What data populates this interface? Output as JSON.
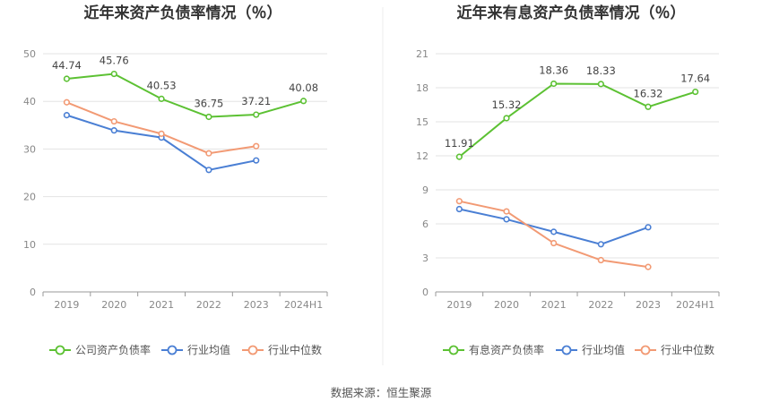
{
  "colors": {
    "green": "#5cc133",
    "blue": "#4a7fd4",
    "orange": "#f29a74",
    "grid": "#e3e3e3",
    "axis": "#999999"
  },
  "source_text": "数据来源：恒生聚源",
  "chart_data": [
    {
      "type": "line",
      "title": "近年来资产负债率情况（％）",
      "categories": [
        "2019",
        "2020",
        "2021",
        "2022",
        "2023",
        "2024H1"
      ],
      "ylim": [
        0,
        50
      ],
      "yticks": [
        0,
        10,
        20,
        30,
        40,
        50
      ],
      "grid": true,
      "legend_position": "bottom",
      "series": [
        {
          "name": "公司资产负债率",
          "color": "green",
          "values": [
            44.74,
            45.76,
            40.53,
            36.75,
            37.21,
            40.08
          ],
          "labels": [
            "44.74",
            "45.76",
            "40.53",
            "36.75",
            "37.21",
            "40.08"
          ]
        },
        {
          "name": "行业均值",
          "color": "blue",
          "values": [
            37.1,
            33.9,
            32.4,
            25.6,
            27.6,
            null
          ],
          "labels": null
        },
        {
          "name": "行业中位数",
          "color": "orange",
          "values": [
            39.8,
            35.8,
            33.2,
            29.1,
            30.6,
            null
          ],
          "labels": null
        }
      ]
    },
    {
      "type": "line",
      "title": "近年来有息资产负债率情况（％）",
      "categories": [
        "2019",
        "2020",
        "2021",
        "2022",
        "2023",
        "2024H1"
      ],
      "ylim": [
        0,
        21
      ],
      "yticks": [
        0,
        3,
        6,
        9,
        12,
        15,
        18,
        21
      ],
      "grid": true,
      "legend_position": "bottom",
      "series": [
        {
          "name": "有息资产负债率",
          "color": "green",
          "values": [
            11.91,
            15.32,
            18.36,
            18.33,
            16.32,
            17.64
          ],
          "labels": [
            "11.91",
            "15.32",
            "18.36",
            "18.33",
            "16.32",
            "17.64"
          ]
        },
        {
          "name": "行业均值",
          "color": "blue",
          "values": [
            7.3,
            6.4,
            5.3,
            4.2,
            5.7,
            null
          ],
          "labels": null
        },
        {
          "name": "行业中位数",
          "color": "orange",
          "values": [
            8.0,
            7.1,
            4.3,
            2.8,
            2.2,
            null
          ],
          "labels": null
        }
      ]
    }
  ]
}
